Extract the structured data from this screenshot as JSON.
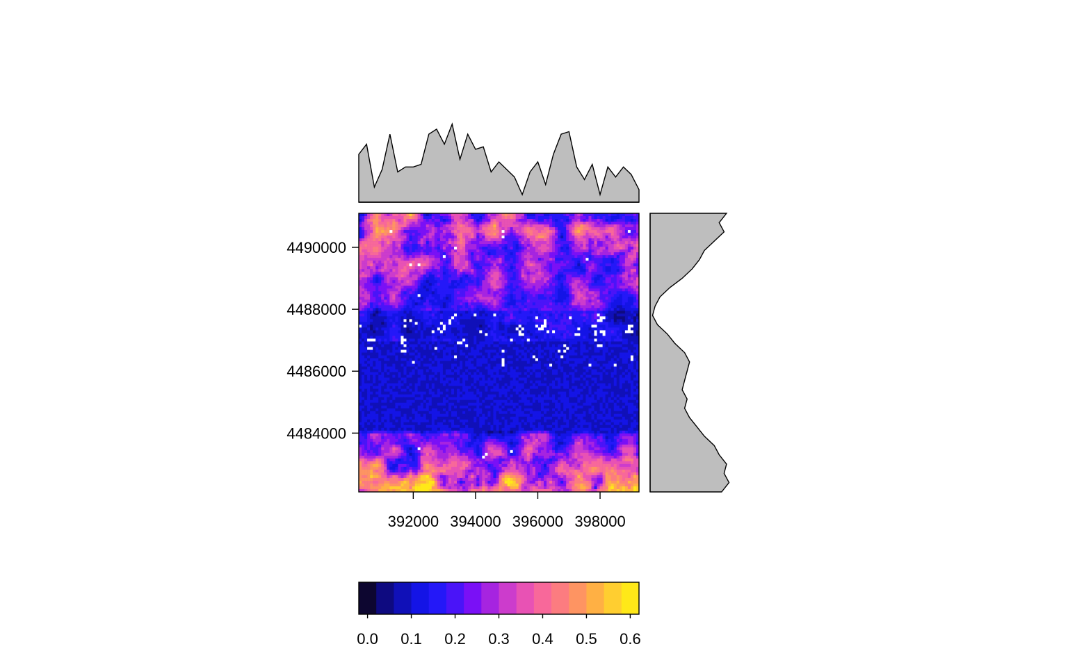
{
  "chart_data": {
    "type": "heatmap",
    "title": "",
    "xlabel": "",
    "ylabel": "",
    "x_ticks": [
      392000,
      394000,
      396000,
      398000
    ],
    "y_ticks": [
      4484000,
      4486000,
      4488000,
      4490000
    ],
    "xlim": [
      390250,
      399250
    ],
    "ylim": [
      4482100,
      4491100
    ],
    "value_range": [
      -0.02,
      0.62
    ],
    "na_color": "#ffffff",
    "colorbar": {
      "ticks": [
        "0.0",
        "0.1",
        "0.2",
        "0.3",
        "0.4",
        "0.5",
        "0.6"
      ],
      "tick_values": [
        0.0,
        0.1,
        0.2,
        0.3,
        0.4,
        0.5,
        0.6
      ],
      "breaks": [
        -0.02,
        0.02,
        0.06,
        0.1,
        0.14,
        0.18,
        0.22,
        0.26,
        0.3,
        0.34,
        0.38,
        0.42,
        0.46,
        0.5,
        0.54,
        0.58,
        0.62
      ],
      "colors": [
        "#0d0630",
        "#0e0a80",
        "#1010b8",
        "#1414e6",
        "#2418f8",
        "#4a14f8",
        "#7a10f6",
        "#a624e0",
        "#cc3ccc",
        "#e852b4",
        "#f8689a",
        "#fc7c80",
        "#fe9462",
        "#ffb044",
        "#ffce30",
        "#ffe818",
        "#fefe64"
      ]
    },
    "column_profile": {
      "x": [
        390250,
        390500,
        390750,
        391000,
        391250,
        391500,
        391750,
        392000,
        392250,
        392500,
        392750,
        393000,
        393250,
        393500,
        393750,
        394000,
        394250,
        394500,
        394750,
        395000,
        395250,
        395500,
        395750,
        396000,
        396250,
        396500,
        396750,
        397000,
        397250,
        397500,
        397750,
        398000,
        398250,
        398500,
        398750,
        399000,
        399250
      ],
      "mean": [
        0.19,
        0.23,
        0.06,
        0.13,
        0.27,
        0.12,
        0.14,
        0.14,
        0.15,
        0.27,
        0.29,
        0.23,
        0.31,
        0.17,
        0.27,
        0.21,
        0.22,
        0.12,
        0.16,
        0.13,
        0.1,
        0.03,
        0.12,
        0.16,
        0.07,
        0.19,
        0.27,
        0.28,
        0.14,
        0.09,
        0.15,
        0.03,
        0.14,
        0.1,
        0.14,
        0.11,
        0.05
      ]
    },
    "row_profile": {
      "y": [
        4491100,
        4490800,
        4490500,
        4490200,
        4489900,
        4489600,
        4489300,
        4489000,
        4488700,
        4488400,
        4488100,
        4487800,
        4487500,
        4487200,
        4486900,
        4486600,
        4486300,
        4486000,
        4485700,
        4485400,
        4485100,
        4484800,
        4484500,
        4484200,
        4483900,
        4483600,
        4483300,
        4483000,
        4482700,
        4482400,
        4482100
      ],
      "mean": [
        0.31,
        0.28,
        0.3,
        0.26,
        0.22,
        0.2,
        0.17,
        0.13,
        0.08,
        0.04,
        0.02,
        0.01,
        0.03,
        0.07,
        0.1,
        0.14,
        0.16,
        0.15,
        0.14,
        0.13,
        0.15,
        0.14,
        0.16,
        0.19,
        0.22,
        0.26,
        0.28,
        0.31,
        0.3,
        0.32,
        0.29
      ]
    }
  }
}
